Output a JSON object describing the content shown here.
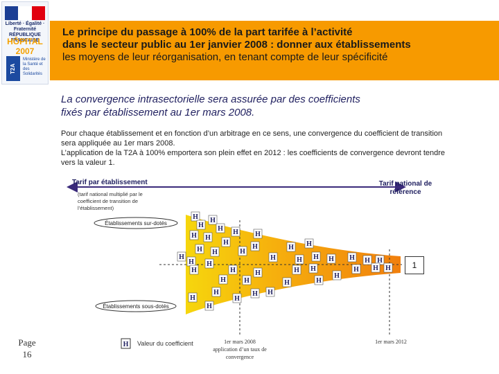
{
  "logo": {
    "republique": "Liberté · Égalité · Fraternité RÉPUBLIQUE FRANÇAISE",
    "hopital": "HÔPITAL 2007",
    "t2a": "T2A",
    "ministere": "Ministère de la Santé et des Solidarités"
  },
  "header": {
    "line1": "Le principe du passage à 100% de la part tarifée à l’activité",
    "line2": "dans le secteur public au 1er janvier 2008 : donner aux établissements",
    "line3": "les moyens de leur réorganisation, en tenant compte de leur spécificité"
  },
  "subtitle": {
    "line1": "La convergence intrasectorielle sera assurée par des coefficients",
    "line2": "fixés par établissement au 1er mars 2008."
  },
  "body": {
    "line1": "Pour chaque établissement et en fonction d’un arbitrage en ce sens, une convergence du coefficient de transition",
    "line2": "sera appliquée au 1er mars 2008.",
    "line3": "L’application de la T2A à 100% emportera son plein effet en 2012 : les coefficients de convergence devront tendre",
    "line4": "vers la valeur 1."
  },
  "diagram": {
    "tarif_etab": "Tarif par établissement",
    "tarif_note": "(tarif national multiplié par le coefficient de transition de l’établissement)",
    "tarif_nat": "Tarif national de référence",
    "sur_dotes": "Établissements sur-dotés",
    "sous_dotes": "Établissements sous-dotés",
    "one": "1",
    "legend_symbol": "H",
    "legend_text": "Valeur du coefficient",
    "date1": "1er mars 2008 application d’un taux de convergence",
    "date2": "1er mars 2012",
    "accent_orange": "#f79a00",
    "cone_yellow": "#f5d400",
    "cone_orange": "#f07800",
    "navy": "#1f1f5f"
  },
  "page": {
    "label": "Page",
    "number": "16"
  }
}
